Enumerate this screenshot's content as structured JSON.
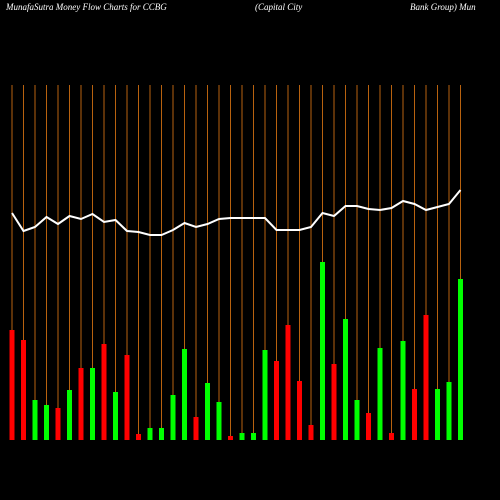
{
  "chart_data": {
    "type": "bar",
    "title": [
      "MunafaSutra  Money Flow  Charts for CCBG",
      "(Capital City",
      "Bank Group) Mun"
    ],
    "values": [
      110,
      100,
      40,
      35,
      32,
      50,
      72,
      72,
      96,
      48,
      85,
      6,
      12,
      12,
      45,
      91,
      23,
      57,
      38,
      4,
      7,
      7,
      90,
      79,
      115,
      59,
      15,
      178,
      76,
      121,
      40,
      27,
      92,
      7,
      99,
      51,
      125,
      51,
      58,
      161
    ],
    "colors": [
      "#ff0000",
      "#ff0000",
      "#00ff00",
      "#00ff00",
      "#ff0000",
      "#00ff00",
      "#ff0000",
      "#00ff00",
      "#ff0000",
      "#00ff00",
      "#ff0000",
      "#ff0000",
      "#00ff00",
      "#00ff00",
      "#00ff00",
      "#00ff00",
      "#ff0000",
      "#00ff00",
      "#00ff00",
      "#ff0000",
      "#00ff00",
      "#00ff00",
      "#00ff00",
      "#ff0000",
      "#ff0000",
      "#ff0000",
      "#ff0000",
      "#00ff00",
      "#ff0000",
      "#00ff00",
      "#00ff00",
      "#ff0000",
      "#00ff00",
      "#ff0000",
      "#00ff00",
      "#ff0000",
      "#ff0000",
      "#00ff00",
      "#00ff00",
      "#00ff00"
    ],
    "line_values": [
      227,
      209,
      213,
      223,
      216,
      224,
      221,
      226,
      218,
      220,
      209,
      208,
      205,
      205,
      210,
      217,
      213,
      216,
      221,
      222,
      222,
      222,
      222,
      210,
      210,
      210,
      213,
      227,
      224,
      234,
      234,
      231,
      230,
      232,
      239,
      236,
      230,
      233,
      236,
      250
    ],
    "line_color": "#ffffff",
    "ylim": [
      0,
      300
    ]
  }
}
